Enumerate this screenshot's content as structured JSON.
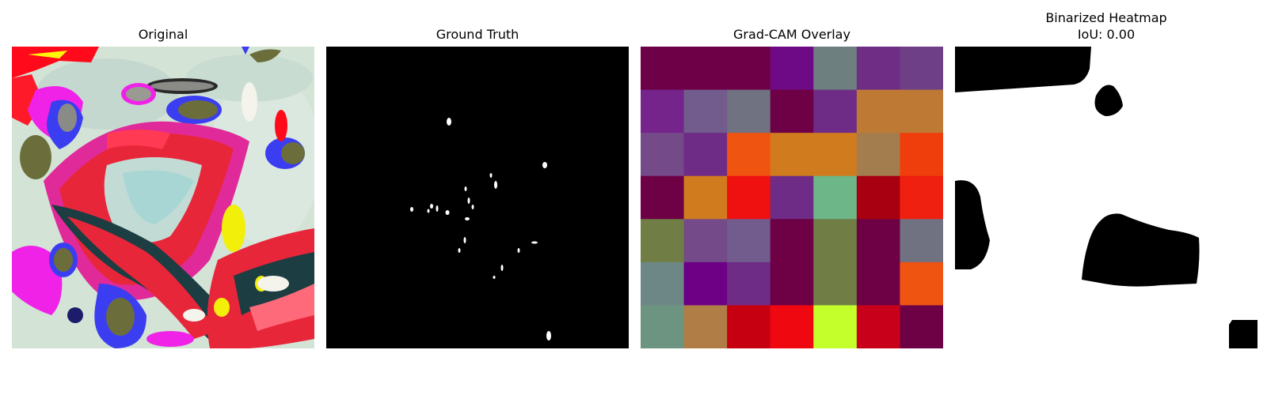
{
  "panels": [
    {
      "title": "Original"
    },
    {
      "title": "Ground Truth"
    },
    {
      "title": "Grad-CAM Overlay"
    },
    {
      "title": "Binarized Heatmap",
      "subtitle": "IoU: 0.00"
    }
  ],
  "gradcam_grid": [
    [
      "#6e0047",
      "#6e0047",
      "#6e0047",
      "#6e0a85",
      "#6d7f7e",
      "#6f2d85",
      "#6e3f86"
    ],
    [
      "#74248a",
      "#725b8d",
      "#707181",
      "#6e0046",
      "#6e2c86",
      "#be7a35",
      "#be7a35"
    ],
    [
      "#744a89",
      "#6e2c86",
      "#ef5411",
      "#d07b1d",
      "#d07b1d",
      "#a47d4e",
      "#ef3e0c"
    ],
    [
      "#6e0046",
      "#d07b1d",
      "#ef1010",
      "#6e2c86",
      "#6db688",
      "#a80010",
      "#ef2010"
    ],
    [
      "#707e46",
      "#744a89",
      "#725b8d",
      "#6e0046",
      "#707e46",
      "#6e0046",
      "#707181"
    ],
    [
      "#6d8787",
      "#6e0085",
      "#6e2c86",
      "#6e0046",
      "#707e46",
      "#6e0046",
      "#ef5411"
    ],
    [
      "#6d9480",
      "#b07d47",
      "#c60010",
      "#ef0810",
      "#c4ff2c",
      "#c8001a",
      "#6e0046"
    ]
  ]
}
